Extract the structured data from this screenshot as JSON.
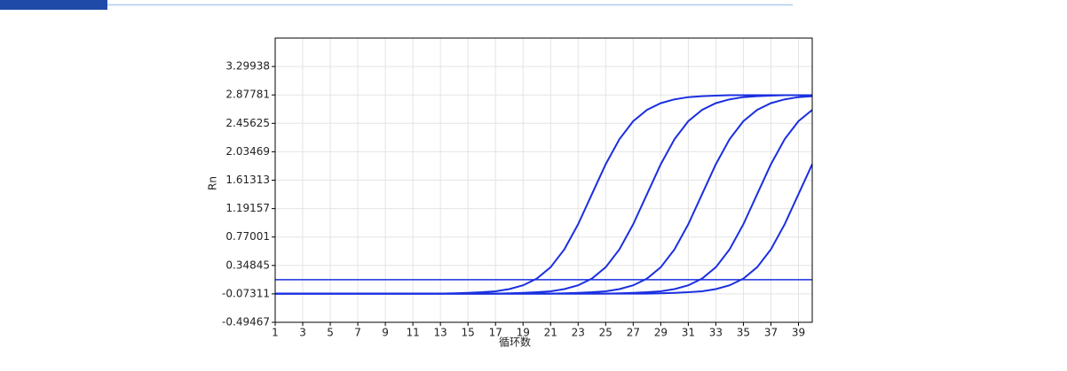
{
  "chart_data": {
    "type": "line",
    "y_label": "Rn",
    "x_label": "循环数",
    "x": [
      1,
      2,
      3,
      4,
      5,
      6,
      7,
      8,
      9,
      10,
      11,
      12,
      13,
      14,
      15,
      16,
      17,
      18,
      19,
      20,
      21,
      22,
      23,
      24,
      25,
      26,
      27,
      28,
      29,
      30,
      31,
      32,
      33,
      34,
      35,
      36,
      37,
      38,
      39,
      40
    ],
    "xlim": [
      1,
      40
    ],
    "xticks": [
      1,
      3,
      5,
      7,
      9,
      11,
      13,
      15,
      17,
      19,
      21,
      23,
      25,
      27,
      29,
      31,
      33,
      35,
      37,
      39
    ],
    "ylim": [
      -0.49467,
      3.72094
    ],
    "yticks": [
      -0.49467,
      -0.07311,
      0.34845,
      0.77001,
      1.19157,
      1.61313,
      2.03469,
      2.45625,
      2.87781,
      3.29938
    ],
    "grid": true,
    "threshold": 0.137,
    "threshold_color": "#1a2fe0",
    "series": [
      {
        "color": "#1a2fe0",
        "values": [
          -0.07,
          -0.07,
          -0.07,
          -0.07,
          -0.07,
          -0.07,
          -0.07,
          -0.07,
          -0.07,
          -0.07,
          -0.07,
          -0.07,
          -0.07,
          -0.064,
          -0.058,
          -0.049,
          -0.035,
          -0.002,
          0.054,
          0.154,
          0.322,
          0.588,
          0.96,
          1.405,
          1.85,
          2.222,
          2.488,
          2.656,
          2.756,
          2.812,
          2.845,
          2.859,
          2.868,
          2.874,
          2.874,
          2.874,
          2.874,
          2.874,
          2.874,
          2.874
        ]
      },
      {
        "color": "#1a2fe0",
        "values": [
          -0.07,
          -0.07,
          -0.07,
          -0.07,
          -0.07,
          -0.07,
          -0.07,
          -0.07,
          -0.07,
          -0.07,
          -0.07,
          -0.07,
          -0.07,
          -0.07,
          -0.07,
          -0.07,
          -0.07,
          -0.064,
          -0.058,
          -0.049,
          -0.035,
          -0.002,
          0.054,
          0.154,
          0.322,
          0.588,
          0.96,
          1.405,
          1.85,
          2.222,
          2.488,
          2.656,
          2.756,
          2.812,
          2.845,
          2.859,
          2.868,
          2.874,
          2.874,
          2.874
        ]
      },
      {
        "color": "#1a2fe0",
        "values": [
          -0.07,
          -0.07,
          -0.07,
          -0.07,
          -0.07,
          -0.07,
          -0.07,
          -0.07,
          -0.07,
          -0.07,
          -0.07,
          -0.07,
          -0.07,
          -0.07,
          -0.07,
          -0.07,
          -0.07,
          -0.07,
          -0.07,
          -0.07,
          -0.07,
          -0.064,
          -0.058,
          -0.049,
          -0.035,
          -0.002,
          0.054,
          0.154,
          0.322,
          0.588,
          0.96,
          1.405,
          1.85,
          2.222,
          2.488,
          2.656,
          2.756,
          2.812,
          2.845,
          2.859
        ]
      },
      {
        "color": "#1a2fe0",
        "values": [
          -0.07,
          -0.07,
          -0.07,
          -0.07,
          -0.07,
          -0.07,
          -0.07,
          -0.07,
          -0.07,
          -0.07,
          -0.07,
          -0.07,
          -0.07,
          -0.07,
          -0.07,
          -0.07,
          -0.07,
          -0.07,
          -0.07,
          -0.07,
          -0.07,
          -0.07,
          -0.07,
          -0.07,
          -0.07,
          -0.064,
          -0.058,
          -0.049,
          -0.035,
          -0.002,
          0.054,
          0.154,
          0.322,
          0.588,
          0.96,
          1.405,
          1.85,
          2.222,
          2.488,
          2.656
        ]
      },
      {
        "color": "#1a2fe0",
        "values": [
          -0.07,
          -0.07,
          -0.07,
          -0.07,
          -0.07,
          -0.07,
          -0.07,
          -0.07,
          -0.07,
          -0.07,
          -0.07,
          -0.07,
          -0.07,
          -0.07,
          -0.07,
          -0.07,
          -0.07,
          -0.07,
          -0.07,
          -0.07,
          -0.07,
          -0.07,
          -0.07,
          -0.07,
          -0.07,
          -0.07,
          -0.07,
          -0.07,
          -0.064,
          -0.058,
          -0.049,
          -0.035,
          -0.002,
          0.054,
          0.154,
          0.322,
          0.588,
          0.96,
          1.405,
          1.85
        ]
      }
    ]
  }
}
